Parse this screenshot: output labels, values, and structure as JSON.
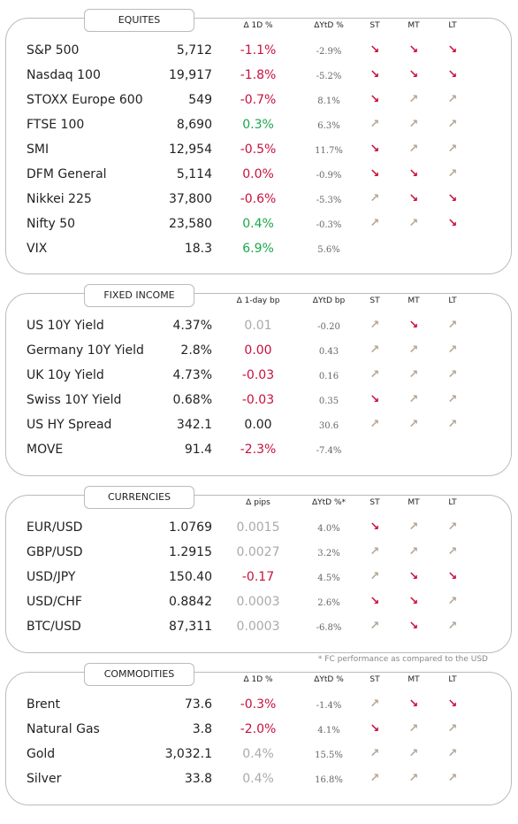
{
  "sections": [
    {
      "title": "EQUITES",
      "headers": [
        "Δ 1D %",
        "ΔYtD %",
        "ST",
        "MT",
        "LT"
      ],
      "rows": [
        {
          "name": "S&P 500",
          "value": "5,712",
          "change": "-1.1%",
          "ytd": "-2.9%",
          "tone": "neg",
          "trend": [
            "down",
            "down",
            "down"
          ]
        },
        {
          "name": "Nasdaq 100",
          "value": "19,917",
          "change": "-1.8%",
          "ytd": "-5.2%",
          "tone": "neg",
          "trend": [
            "down",
            "down",
            "down"
          ]
        },
        {
          "name": "STOXX Europe 600",
          "value": "549",
          "change": "-0.7%",
          "ytd": "8.1%",
          "tone": "neg",
          "trend": [
            "down",
            "up",
            "up"
          ]
        },
        {
          "name": "FTSE 100",
          "value": "8,690",
          "change": "0.3%",
          "ytd": "6.3%",
          "tone": "pos",
          "trend": [
            "up",
            "up",
            "up"
          ]
        },
        {
          "name": "SMI",
          "value": "12,954",
          "change": "-0.5%",
          "ytd": "11.7%",
          "tone": "neg",
          "trend": [
            "down",
            "up",
            "up"
          ]
        },
        {
          "name": "DFM General",
          "value": "5,114",
          "change": "0.0%",
          "ytd": "-0.9%",
          "tone": "neg",
          "trend": [
            "down",
            "down",
            "up"
          ]
        },
        {
          "name": "Nikkei 225",
          "value": "37,800",
          "change": "-0.6%",
          "ytd": "-5.3%",
          "tone": "neg",
          "trend": [
            "up",
            "down",
            "down"
          ]
        },
        {
          "name": "Nifty  50",
          "value": "23,580",
          "change": "0.4%",
          "ytd": "-0.3%",
          "tone": "pos",
          "trend": [
            "up",
            "up",
            "down"
          ]
        },
        {
          "name": "VIX",
          "value": "18.3",
          "change": "6.9%",
          "ytd": "5.6%",
          "tone": "pos",
          "trend": []
        }
      ]
    },
    {
      "title": "FIXED INCOME",
      "headers": [
        "Δ 1-day bp",
        "ΔYtD bp",
        "ST",
        "MT",
        "LT"
      ],
      "rows": [
        {
          "name": "US 10Y Yield",
          "value": "4.37%",
          "change": "0.01",
          "ytd": "-0.20",
          "tone": "flat",
          "trend": [
            "up",
            "down",
            "up"
          ]
        },
        {
          "name": "Germany 10Y Yield",
          "value": "2.8%",
          "change": "0.00",
          "ytd": "0.43",
          "tone": "neg",
          "trend": [
            "up",
            "up",
            "up"
          ]
        },
        {
          "name": "UK 10y Yield",
          "value": "4.73%",
          "change": "-0.03",
          "ytd": "0.16",
          "tone": "neg",
          "trend": [
            "up",
            "up",
            "up"
          ]
        },
        {
          "name": "Swiss 10Y Yield",
          "value": "0.68%",
          "change": "-0.03",
          "ytd": "0.35",
          "tone": "neg",
          "trend": [
            "down",
            "up",
            "up"
          ]
        },
        {
          "name": "US HY Spread",
          "value": "342.1",
          "change": "0.00",
          "ytd": "30.6",
          "tone": "plain",
          "trend": [
            "up",
            "up",
            "up"
          ]
        },
        {
          "name": "MOVE",
          "value": "91.4",
          "change": "-2.3%",
          "ytd": "-7.4%",
          "tone": "neg",
          "trend": []
        }
      ]
    },
    {
      "title": "CURRENCIES",
      "headers": [
        "Δ pips",
        "ΔYtD %*",
        "ST",
        "MT",
        "LT"
      ],
      "rows": [
        {
          "name": "EUR/USD",
          "value": "1.0769",
          "change": "0.0015",
          "ytd": "4.0%",
          "tone": "flat",
          "trend": [
            "down",
            "up",
            "up"
          ]
        },
        {
          "name": "GBP/USD",
          "value": "1.2915",
          "change": "0.0027",
          "ytd": "3.2%",
          "tone": "flat",
          "trend": [
            "up",
            "up",
            "up"
          ]
        },
        {
          "name": "USD/JPY",
          "value": "150.40",
          "change": "-0.17",
          "ytd": "4.5%",
          "tone": "neg",
          "trend": [
            "up",
            "down",
            "down"
          ]
        },
        {
          "name": "USD/CHF",
          "value": "0.8842",
          "change": "0.0003",
          "ytd": "2.6%",
          "tone": "flat",
          "trend": [
            "down",
            "down",
            "up"
          ]
        },
        {
          "name": "BTC/USD",
          "value": "87,311",
          "change": "0.0003",
          "ytd": "-6.8%",
          "tone": "flat",
          "trend": [
            "up",
            "down",
            "up"
          ]
        }
      ]
    },
    {
      "title": "COMMODITIES",
      "headers": [
        "Δ 1D %",
        "ΔYtD %",
        "ST",
        "MT",
        "LT"
      ],
      "rows": [
        {
          "name": "Brent",
          "value": "73.6",
          "change": "-0.3%",
          "ytd": "-1.4%",
          "tone": "neg",
          "trend": [
            "up",
            "down",
            "down"
          ]
        },
        {
          "name": "Natural Gas",
          "value": "3.8",
          "change": "-2.0%",
          "ytd": "4.1%",
          "tone": "neg",
          "trend": [
            "down",
            "up",
            "up"
          ]
        },
        {
          "name": "Gold",
          "value": "3,032.1",
          "change": "0.4%",
          "ytd": "15.5%",
          "tone": "flat",
          "trend": [
            "up",
            "up",
            "up"
          ]
        },
        {
          "name": "Silver",
          "value": "33.8",
          "change": "0.4%",
          "ytd": "16.8%",
          "tone": "flat",
          "trend": [
            "up",
            "up",
            "up"
          ]
        }
      ]
    }
  ],
  "footnote": "* FC performance as compared to the USD"
}
